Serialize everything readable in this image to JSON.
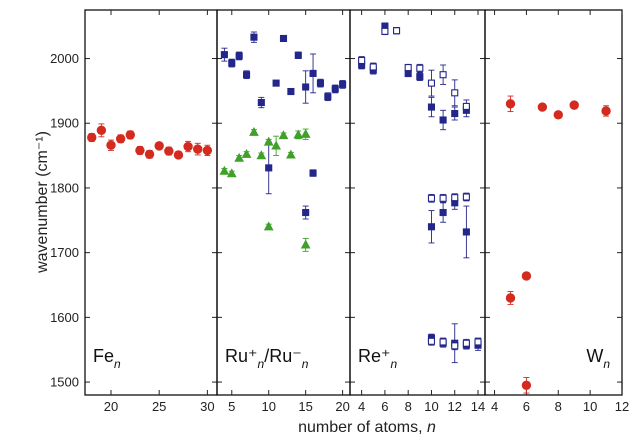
{
  "chart_data": {
    "type": "scatter",
    "ylabel": "wavenumber (cm⁻¹)",
    "xlabel": "number of atoms, n",
    "ylim": [
      1480,
      2075
    ],
    "yticks": [
      1500,
      1600,
      1700,
      1800,
      1900,
      2000
    ],
    "grid": false,
    "colors": {
      "red": "#d42a1f",
      "blue": "#23268a",
      "green": "#3fa02a"
    },
    "panels": [
      {
        "label_main": "Fe",
        "label_sub": "n",
        "label_pos": "bottom-left",
        "xlim": [
          17.3,
          31
        ],
        "xticks": [
          20,
          25,
          30
        ],
        "series": [
          {
            "marker": "circle",
            "color": "red",
            "fill": "filled",
            "points": [
              {
                "x": 18,
                "y": 1878,
                "e": 6
              },
              {
                "x": 19,
                "y": 1889,
                "e": 10
              },
              {
                "x": 20,
                "y": 1866,
                "e": 8
              },
              {
                "x": 21,
                "y": 1876,
                "e": 6
              },
              {
                "x": 22,
                "y": 1882,
                "e": 6
              },
              {
                "x": 23,
                "y": 1858,
                "e": 6
              },
              {
                "x": 24,
                "y": 1852,
                "e": 6
              },
              {
                "x": 25,
                "y": 1865,
                "e": 5
              },
              {
                "x": 26,
                "y": 1857,
                "e": 6
              },
              {
                "x": 27,
                "y": 1851,
                "e": 5
              },
              {
                "x": 28,
                "y": 1864,
                "e": 8
              },
              {
                "x": 29,
                "y": 1860,
                "e": 9
              },
              {
                "x": 30,
                "y": 1858,
                "e": 8
              }
            ]
          }
        ]
      },
      {
        "label_main": "Ru⁺/Ru⁻",
        "label_sub": "n",
        "label_pos": "bottom-left",
        "xlim": [
          3,
          21
        ],
        "xticks": [
          5,
          10,
          15,
          20
        ],
        "series": [
          {
            "marker": "square",
            "color": "blue",
            "fill": "filled",
            "points": [
              {
                "x": 4,
                "y": 2006,
                "e": 10
              },
              {
                "x": 5,
                "y": 1993,
                "e": 6
              },
              {
                "x": 6,
                "y": 2004,
                "e": 6
              },
              {
                "x": 7,
                "y": 1975,
                "e": 6
              },
              {
                "x": 8,
                "y": 2033,
                "e": 8
              },
              {
                "x": 9,
                "y": 1932,
                "e": 8
              },
              {
                "x": 10,
                "y": 1831,
                "e": 40
              },
              {
                "x": 11,
                "y": 1962,
                "e": 4
              },
              {
                "x": 12,
                "y": 2031,
                "e": 3
              },
              {
                "x": 13,
                "y": 1949,
                "e": 3
              },
              {
                "x": 14,
                "y": 2005,
                "e": 5
              },
              {
                "x": 15,
                "y": 1956,
                "e": 25
              },
              {
                "x": 16,
                "y": 1977,
                "e": 30
              },
              {
                "x": 17,
                "y": 1962,
                "e": 6
              },
              {
                "x": 18,
                "y": 1941,
                "e": 6
              },
              {
                "x": 19,
                "y": 1953,
                "e": 6
              },
              {
                "x": 20,
                "y": 1960,
                "e": 6
              },
              {
                "x": 15,
                "y": 1762,
                "e": 10
              },
              {
                "x": 16,
                "y": 1823,
                "e": 5
              }
            ]
          },
          {
            "marker": "triangle",
            "color": "green",
            "fill": "filled",
            "points": [
              {
                "x": 4,
                "y": 1826,
                "e": 4
              },
              {
                "x": 5,
                "y": 1822,
                "e": 4
              },
              {
                "x": 6,
                "y": 1846,
                "e": 4
              },
              {
                "x": 7,
                "y": 1852,
                "e": 4
              },
              {
                "x": 8,
                "y": 1886,
                "e": 4
              },
              {
                "x": 9,
                "y": 1850,
                "e": 4
              },
              {
                "x": 10,
                "y": 1871,
                "e": 4
              },
              {
                "x": 11,
                "y": 1865,
                "e": 15
              },
              {
                "x": 12,
                "y": 1881,
                "e": 4
              },
              {
                "x": 13,
                "y": 1851,
                "e": 4
              },
              {
                "x": 14,
                "y": 1882,
                "e": 6
              },
              {
                "x": 15,
                "y": 1883,
                "e": 8
              },
              {
                "x": 10,
                "y": 1740,
                "e": 4
              },
              {
                "x": 15,
                "y": 1712,
                "e": 10
              }
            ]
          }
        ]
      },
      {
        "label_main": "Re⁺",
        "label_sub": "n",
        "label_pos": "bottom-left",
        "xlim": [
          3,
          14.6
        ],
        "xticks": [
          4,
          6,
          8,
          10,
          12,
          14
        ],
        "series": [
          {
            "marker": "square",
            "color": "blue",
            "fill": "filled",
            "points": [
              {
                "x": 4,
                "y": 1990,
                "e": 6
              },
              {
                "x": 5,
                "y": 1982,
                "e": 6
              },
              {
                "x": 6,
                "y": 2050,
                "e": 5
              },
              {
                "x": 8,
                "y": 1977,
                "e": 5
              },
              {
                "x": 9,
                "y": 1972,
                "e": 6
              },
              {
                "x": 10,
                "y": 1925,
                "e": 15
              },
              {
                "x": 11,
                "y": 1905,
                "e": 15
              },
              {
                "x": 12,
                "y": 1915,
                "e": 10
              },
              {
                "x": 13,
                "y": 1920,
                "e": 10
              },
              {
                "x": 10,
                "y": 1740,
                "e": 25
              },
              {
                "x": 11,
                "y": 1762,
                "e": 15
              },
              {
                "x": 12,
                "y": 1777,
                "e": 10
              },
              {
                "x": 13,
                "y": 1732,
                "e": 40
              },
              {
                "x": 10,
                "y": 1568,
                "e": 6
              },
              {
                "x": 11,
                "y": 1560,
                "e": 6
              },
              {
                "x": 12,
                "y": 1560,
                "e": 30
              },
              {
                "x": 13,
                "y": 1557,
                "e": 6
              },
              {
                "x": 14,
                "y": 1557,
                "e": 8
              }
            ]
          },
          {
            "marker": "square",
            "color": "blue",
            "fill": "open",
            "points": [
              {
                "x": 4,
                "y": 1997,
                "e": 6
              },
              {
                "x": 5,
                "y": 1987,
                "e": 6
              },
              {
                "x": 6,
                "y": 2042,
                "e": 5
              },
              {
                "x": 7,
                "y": 2043,
                "e": 5
              },
              {
                "x": 8,
                "y": 1986,
                "e": 5
              },
              {
                "x": 9,
                "y": 1985,
                "e": 6
              },
              {
                "x": 10,
                "y": 1962,
                "e": 20
              },
              {
                "x": 11,
                "y": 1975,
                "e": 15
              },
              {
                "x": 12,
                "y": 1947,
                "e": 20
              },
              {
                "x": 13,
                "y": 1926,
                "e": 10
              },
              {
                "x": 10,
                "y": 1784,
                "e": 6
              },
              {
                "x": 11,
                "y": 1784,
                "e": 6
              },
              {
                "x": 12,
                "y": 1785,
                "e": 6
              },
              {
                "x": 13,
                "y": 1786,
                "e": 6
              },
              {
                "x": 10,
                "y": 1563,
                "e": 6
              },
              {
                "x": 11,
                "y": 1562,
                "e": 6
              },
              {
                "x": 12,
                "y": 1556,
                "e": 6
              },
              {
                "x": 13,
                "y": 1560,
                "e": 6
              },
              {
                "x": 14,
                "y": 1562,
                "e": 6
              }
            ]
          }
        ]
      },
      {
        "label_main": "W",
        "label_sub": "n",
        "label_pos": "bottom-right",
        "xlim": [
          3.4,
          12
        ],
        "xticks": [
          4,
          6,
          8,
          10,
          12
        ],
        "series": [
          {
            "marker": "circle",
            "color": "red",
            "fill": "filled",
            "points": [
              {
                "x": 5,
                "y": 1930,
                "e": 12
              },
              {
                "x": 7,
                "y": 1925,
                "e": 4
              },
              {
                "x": 8,
                "y": 1913,
                "e": 4
              },
              {
                "x": 9,
                "y": 1928,
                "e": 5
              },
              {
                "x": 11,
                "y": 1919,
                "e": 8
              },
              {
                "x": 5,
                "y": 1630,
                "e": 10
              },
              {
                "x": 6,
                "y": 1664,
                "e": 5
              },
              {
                "x": 6,
                "y": 1495,
                "e": 12
              }
            ]
          }
        ]
      }
    ]
  }
}
